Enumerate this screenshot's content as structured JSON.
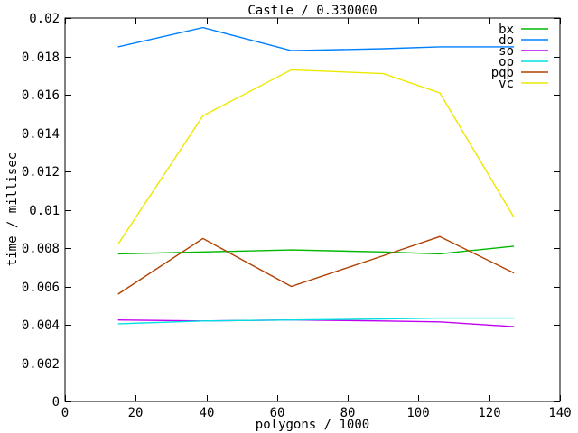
{
  "chart_data": {
    "type": "line",
    "title": "Castle / 0.330000",
    "xlabel": "polygons / 1000",
    "ylabel": "time / millisec",
    "xlim": [
      0,
      140
    ],
    "ylim": [
      0,
      0.02
    ],
    "grid": false,
    "legend_position": "top-right-inside",
    "xticks": [
      0,
      20,
      40,
      60,
      80,
      100,
      120,
      140
    ],
    "xtick_labels": [
      "0",
      "20",
      "40",
      "60",
      "80",
      "100",
      "120",
      "140"
    ],
    "yticks": [
      0,
      0.002,
      0.004,
      0.006,
      0.008,
      0.01,
      0.012,
      0.014,
      0.016,
      0.018,
      0.02
    ],
    "ytick_labels": [
      "0",
      "0.002",
      "0.004",
      "0.006",
      "0.008",
      "0.01",
      "0.012",
      "0.014",
      "0.016",
      "0.018",
      "0.02"
    ],
    "x": [
      15,
      39,
      64,
      90,
      106,
      127
    ],
    "series": [
      {
        "name": "bx",
        "color": "#00b800",
        "values": [
          0.0077,
          0.0078,
          0.0079,
          0.0078,
          0.0077,
          0.0081
        ]
      },
      {
        "name": "do",
        "color": "#0080ff",
        "values": [
          0.0185,
          0.0195,
          0.0183,
          0.0184,
          0.0185,
          0.0185
        ]
      },
      {
        "name": "so",
        "color": "#c000f0",
        "values": [
          0.00425,
          0.0042,
          0.00425,
          0.0042,
          0.00415,
          0.0039
        ]
      },
      {
        "name": "op",
        "color": "#00e0e0",
        "values": [
          0.00405,
          0.0042,
          0.00425,
          0.0043,
          0.00435,
          0.00435
        ]
      },
      {
        "name": "pqp",
        "color": "#b04000",
        "values": [
          0.0056,
          0.0085,
          0.006,
          0.0076,
          0.0086,
          0.0067
        ]
      },
      {
        "name": "vc",
        "color": "#ece800",
        "values": [
          0.0082,
          0.0149,
          0.0173,
          0.0171,
          0.0161,
          0.0096
        ]
      }
    ],
    "axis_color": "#000000",
    "background": "#ffffff"
  }
}
